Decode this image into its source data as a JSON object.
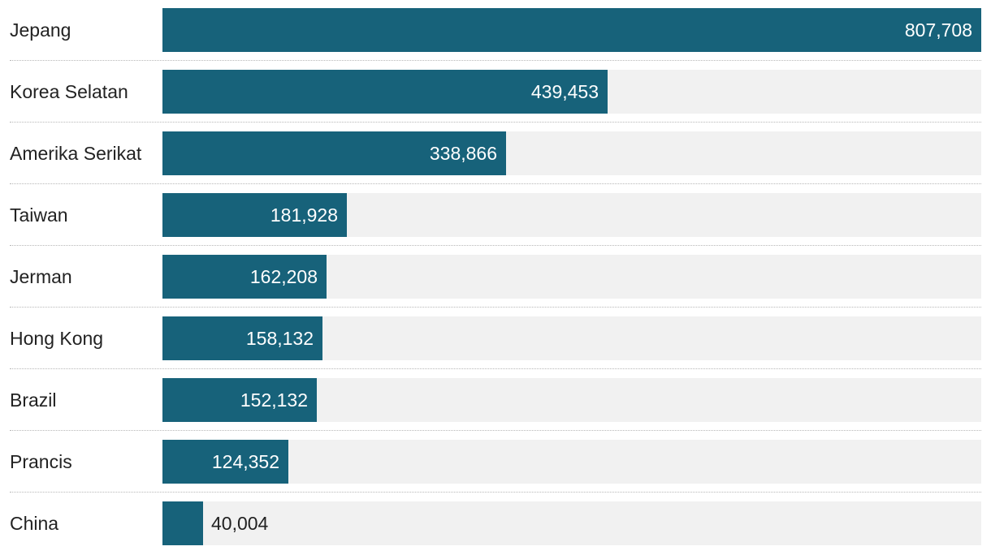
{
  "chart_data": {
    "type": "bar",
    "orientation": "horizontal",
    "categories": [
      "Jepang",
      "Korea Selatan",
      "Amerika Serikat",
      "Taiwan",
      "Jerman",
      "Hong Kong",
      "Brazil",
      "Prancis",
      "China"
    ],
    "values": [
      807708,
      439453,
      338866,
      181928,
      162208,
      158132,
      152132,
      124352,
      40004
    ],
    "value_labels": [
      "807,708",
      "439,453",
      "338,866",
      "181,928",
      "162,208",
      "158,132",
      "152,132",
      "124,352",
      "40,004"
    ],
    "xlim": [
      0,
      807708
    ],
    "title": "",
    "xlabel": "",
    "ylabel": "",
    "grid": false,
    "legend": "none",
    "colors": {
      "bar": "#17627a",
      "track": "#f1f1f1",
      "label_inside": "#ffffff",
      "label_outside": "#222222"
    }
  }
}
